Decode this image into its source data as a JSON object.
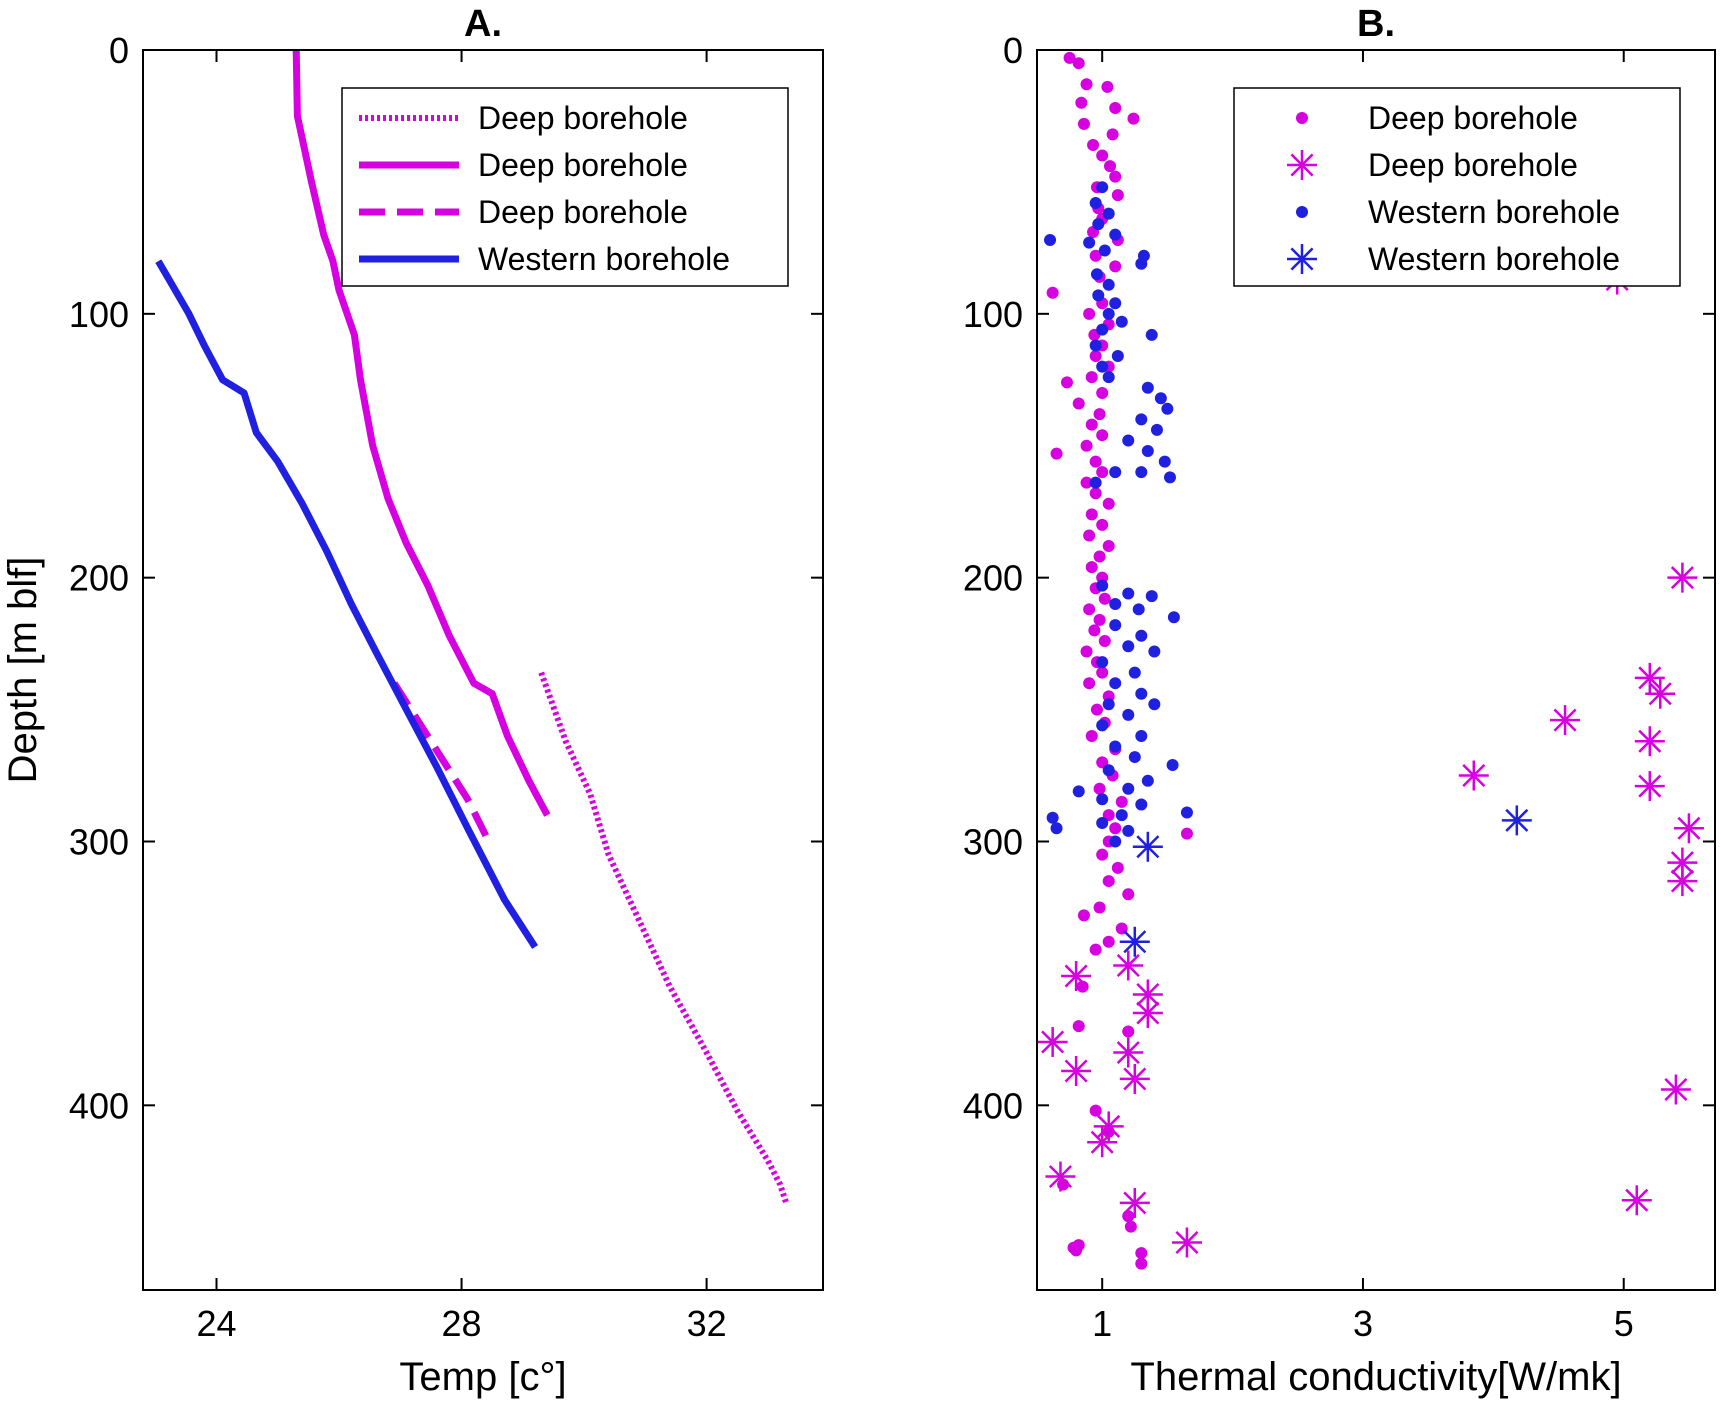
{
  "colors": {
    "magenta": "#d600e0",
    "blue": "#2020e0",
    "axis": "#000000"
  },
  "chart_data": [
    {
      "type": "line",
      "title": "A.",
      "xlabel": "Temp [c°]",
      "ylabel": "Depth [m blf]",
      "xlim": [
        22.8,
        33.9
      ],
      "ylim": [
        470,
        0
      ],
      "xticks": [
        24,
        28,
        32
      ],
      "yticks": [
        0,
        100,
        200,
        300,
        400
      ],
      "grid": false,
      "legend_position": "top-right",
      "series": [
        {
          "name": "Deep borehole",
          "style": "dotted",
          "color": "magenta",
          "points": [
            [
              29.3,
              236
            ],
            [
              29.7,
              262
            ],
            [
              30.1,
              282
            ],
            [
              30.4,
              305
            ],
            [
              30.9,
              330
            ],
            [
              31.4,
              355
            ],
            [
              32.0,
              380
            ],
            [
              32.5,
              402
            ],
            [
              33.0,
              421
            ],
            [
              33.2,
              430
            ],
            [
              33.3,
              437
            ]
          ]
        },
        {
          "name": "Deep borehole",
          "style": "solid",
          "color": "magenta",
          "points": [
            [
              25.3,
              0
            ],
            [
              25.32,
              25
            ],
            [
              25.55,
              50
            ],
            [
              25.75,
              70
            ],
            [
              25.9,
              80
            ],
            [
              26.0,
              91
            ],
            [
              26.25,
              108
            ],
            [
              26.35,
              125
            ],
            [
              26.55,
              150
            ],
            [
              26.8,
              170
            ],
            [
              27.1,
              187
            ],
            [
              27.45,
              203
            ],
            [
              27.8,
              222
            ],
            [
              28.2,
              240
            ],
            [
              28.5,
              244
            ],
            [
              28.75,
              260
            ],
            [
              29.1,
              277
            ],
            [
              29.4,
              290
            ]
          ]
        },
        {
          "name": "Deep borehole",
          "style": "dashed",
          "color": "magenta",
          "points": [
            [
              26.9,
              240
            ],
            [
              27.5,
              262
            ],
            [
              28.1,
              284
            ],
            [
              28.4,
              298
            ]
          ]
        },
        {
          "name": "Western borehole",
          "style": "solid",
          "color": "blue",
          "points": [
            [
              23.05,
              80
            ],
            [
              23.3,
              90
            ],
            [
              23.55,
              100
            ],
            [
              23.8,
              112
            ],
            [
              24.1,
              125
            ],
            [
              24.45,
              130
            ],
            [
              24.65,
              145
            ],
            [
              25.0,
              156
            ],
            [
              25.4,
              172
            ],
            [
              25.8,
              190
            ],
            [
              26.2,
              210
            ],
            [
              26.6,
              228
            ],
            [
              27.1,
              250
            ],
            [
              27.6,
              272
            ],
            [
              28.1,
              295
            ],
            [
              28.7,
              322
            ],
            [
              29.2,
              340
            ]
          ]
        }
      ]
    },
    {
      "type": "scatter",
      "title": "B.",
      "xlabel": "Thermal conductivity[W/mk]",
      "ylabel": "",
      "xlim": [
        0.5,
        5.7
      ],
      "ylim": [
        470,
        0
      ],
      "xticks": [
        1,
        3,
        5
      ],
      "yticks": [
        0,
        100,
        200,
        300,
        400
      ],
      "grid": false,
      "legend_position": "top-right",
      "series": [
        {
          "name": "Deep borehole",
          "marker": "dot",
          "color": "magenta",
          "points": [
            [
              0.75,
              3
            ],
            [
              0.82,
              5
            ],
            [
              0.88,
              13
            ],
            [
              0.84,
              20
            ],
            [
              1.04,
              14
            ],
            [
              1.1,
              22
            ],
            [
              1.24,
              26
            ],
            [
              0.86,
              28
            ],
            [
              1.08,
              32
            ],
            [
              0.93,
              36
            ],
            [
              1.0,
              40
            ],
            [
              1.06,
              44
            ],
            [
              1.1,
              48
            ],
            [
              0.96,
              52
            ],
            [
              1.12,
              55
            ],
            [
              0.97,
              60
            ],
            [
              1.0,
              64
            ],
            [
              0.93,
              69
            ],
            [
              1.12,
              72
            ],
            [
              0.95,
              78
            ],
            [
              1.1,
              82
            ],
            [
              0.98,
              86
            ],
            [
              0.62,
              92
            ],
            [
              1.0,
              96
            ],
            [
              0.9,
              100
            ],
            [
              1.05,
              104
            ],
            [
              0.94,
              108
            ],
            [
              1.0,
              112
            ],
            [
              0.95,
              116
            ],
            [
              1.05,
              120
            ],
            [
              0.92,
              124
            ],
            [
              0.73,
              126
            ],
            [
              1.0,
              130
            ],
            [
              0.82,
              134
            ],
            [
              0.98,
              138
            ],
            [
              0.92,
              142
            ],
            [
              1.0,
              146
            ],
            [
              0.88,
              150
            ],
            [
              0.65,
              153
            ],
            [
              0.95,
              156
            ],
            [
              1.0,
              160
            ],
            [
              0.88,
              164
            ],
            [
              0.95,
              168
            ],
            [
              1.05,
              172
            ],
            [
              0.92,
              176
            ],
            [
              1.0,
              180
            ],
            [
              0.9,
              184
            ],
            [
              1.05,
              188
            ],
            [
              0.98,
              192
            ],
            [
              0.92,
              196
            ],
            [
              1.0,
              200
            ],
            [
              0.95,
              204
            ],
            [
              1.02,
              208
            ],
            [
              0.9,
              212
            ],
            [
              0.98,
              216
            ],
            [
              0.94,
              220
            ],
            [
              1.02,
              224
            ],
            [
              0.88,
              228
            ],
            [
              0.96,
              232
            ],
            [
              1.0,
              236
            ],
            [
              0.9,
              240
            ],
            [
              1.05,
              245
            ],
            [
              0.96,
              250
            ],
            [
              1.02,
              255
            ],
            [
              0.92,
              260
            ],
            [
              1.1,
              265
            ],
            [
              1.0,
              270
            ],
            [
              1.08,
              275
            ],
            [
              0.98,
              280
            ],
            [
              1.15,
              285
            ],
            [
              1.05,
              290
            ],
            [
              1.1,
              295
            ],
            [
              1.65,
              297
            ],
            [
              1.05,
              300
            ],
            [
              1.0,
              305
            ],
            [
              1.12,
              310
            ],
            [
              1.05,
              315
            ],
            [
              1.2,
              320
            ],
            [
              0.98,
              325
            ],
            [
              0.86,
              328
            ],
            [
              1.15,
              333
            ],
            [
              1.05,
              338
            ],
            [
              0.95,
              341
            ],
            [
              0.85,
              355
            ],
            [
              0.82,
              370
            ],
            [
              1.2,
              372
            ],
            [
              0.95,
              402
            ],
            [
              1.05,
              410
            ],
            [
              1.2,
              442
            ],
            [
              1.22,
              446
            ],
            [
              0.82,
              453
            ],
            [
              0.78,
              454
            ],
            [
              1.3,
              456
            ],
            [
              1.3,
              460
            ],
            [
              0.8,
              455
            ],
            [
              0.7,
              430
            ]
          ]
        },
        {
          "name": "Deep borehole",
          "marker": "asterisk",
          "color": "magenta",
          "points": [
            [
              4.95,
              87
            ],
            [
              5.45,
              200
            ],
            [
              5.2,
              238
            ],
            [
              5.28,
              244
            ],
            [
              4.55,
              254
            ],
            [
              5.2,
              262
            ],
            [
              3.85,
              275
            ],
            [
              5.2,
              279
            ],
            [
              5.5,
              295
            ],
            [
              5.45,
              308
            ],
            [
              5.45,
              315
            ],
            [
              0.8,
              351
            ],
            [
              1.2,
              347
            ],
            [
              1.35,
              358
            ],
            [
              1.35,
              365
            ],
            [
              0.62,
              376
            ],
            [
              0.8,
              387
            ],
            [
              1.2,
              380
            ],
            [
              1.25,
              390
            ],
            [
              5.4,
              394
            ],
            [
              1.05,
              408
            ],
            [
              1.0,
              414
            ],
            [
              0.68,
              427
            ],
            [
              1.25,
              437
            ],
            [
              5.1,
              436
            ],
            [
              1.65,
              452
            ]
          ]
        },
        {
          "name": "Western borehole",
          "marker": "dot",
          "color": "blue",
          "points": [
            [
              1.0,
              52
            ],
            [
              0.95,
              58
            ],
            [
              1.05,
              62
            ],
            [
              0.97,
              66
            ],
            [
              1.1,
              70
            ],
            [
              0.6,
              72
            ],
            [
              0.9,
              73
            ],
            [
              1.02,
              76
            ],
            [
              1.32,
              78
            ],
            [
              1.3,
              81
            ],
            [
              0.96,
              85
            ],
            [
              1.05,
              89
            ],
            [
              0.97,
              93
            ],
            [
              1.1,
              96
            ],
            [
              1.05,
              100
            ],
            [
              1.15,
              103
            ],
            [
              1.0,
              106
            ],
            [
              1.38,
              108
            ],
            [
              0.95,
              112
            ],
            [
              1.12,
              116
            ],
            [
              1.0,
              120
            ],
            [
              1.05,
              124
            ],
            [
              1.35,
              128
            ],
            [
              1.45,
              132
            ],
            [
              1.5,
              136
            ],
            [
              1.3,
              140
            ],
            [
              1.42,
              144
            ],
            [
              1.2,
              148
            ],
            [
              1.35,
              152
            ],
            [
              1.48,
              156
            ],
            [
              1.3,
              160
            ],
            [
              1.52,
              162
            ],
            [
              1.1,
              160
            ],
            [
              0.95,
              164
            ],
            [
              1.0,
              203
            ],
            [
              1.2,
              206
            ],
            [
              1.38,
              207
            ],
            [
              1.1,
              210
            ],
            [
              1.28,
              212
            ],
            [
              1.55,
              215
            ],
            [
              1.1,
              218
            ],
            [
              1.3,
              222
            ],
            [
              1.2,
              226
            ],
            [
              1.4,
              228
            ],
            [
              1.0,
              232
            ],
            [
              1.25,
              236
            ],
            [
              1.1,
              240
            ],
            [
              1.3,
              244
            ],
            [
              1.05,
              248
            ],
            [
              1.4,
              248
            ],
            [
              1.2,
              252
            ],
            [
              1.0,
              256
            ],
            [
              1.3,
              260
            ],
            [
              1.1,
              264
            ],
            [
              1.25,
              268
            ],
            [
              1.54,
              271
            ],
            [
              1.05,
              273
            ],
            [
              1.35,
              277
            ],
            [
              1.2,
              280
            ],
            [
              1.0,
              284
            ],
            [
              1.3,
              286
            ],
            [
              0.82,
              281
            ],
            [
              1.15,
              290
            ],
            [
              1.65,
              289
            ],
            [
              1.0,
              293
            ],
            [
              1.2,
              296
            ],
            [
              0.62,
              291
            ],
            [
              0.65,
              295
            ],
            [
              1.1,
              300
            ]
          ]
        },
        {
          "name": "Western borehole",
          "marker": "asterisk",
          "color": "blue",
          "points": [
            [
              4.18,
              292
            ],
            [
              1.35,
              302
            ],
            [
              1.25,
              338
            ]
          ]
        }
      ]
    }
  ]
}
